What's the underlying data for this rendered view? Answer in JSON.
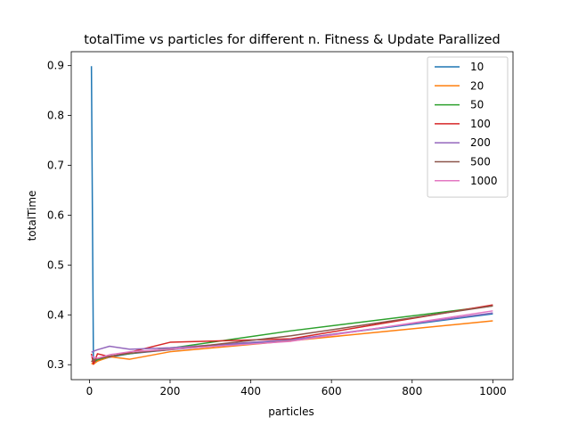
{
  "chart_data": {
    "type": "line",
    "title": "totalTime vs particles for different n. Fitness & Update Parallized",
    "xlabel": "particles",
    "ylabel": "totalTime",
    "xlim": [
      -45,
      1050
    ],
    "ylim": [
      0.27,
      0.928
    ],
    "xticks": [
      0,
      200,
      400,
      600,
      800,
      1000
    ],
    "yticks": [
      0.3,
      0.4,
      0.5,
      0.6,
      0.7,
      0.8,
      0.9
    ],
    "xtick_labels": [
      "0",
      "200",
      "400",
      "600",
      "800",
      "1000"
    ],
    "ytick_labels": [
      "0.3",
      "0.4",
      "0.5",
      "0.6",
      "0.7",
      "0.8",
      "0.9"
    ],
    "grid": false,
    "legend": "top-right",
    "series": [
      {
        "name": "10",
        "color": "#1f77b4",
        "x": [
          5,
          10,
          20,
          50,
          100,
          200,
          500,
          1000
        ],
        "y": [
          0.899,
          0.305,
          0.308,
          0.315,
          0.322,
          0.33,
          0.35,
          0.402
        ]
      },
      {
        "name": "20",
        "color": "#ff7f0e",
        "x": [
          5,
          10,
          20,
          50,
          100,
          200,
          500,
          1000
        ],
        "y": [
          0.303,
          0.301,
          0.307,
          0.316,
          0.311,
          0.326,
          0.348,
          0.388
        ]
      },
      {
        "name": "50",
        "color": "#2ca02c",
        "x": [
          5,
          10,
          20,
          50,
          100,
          200,
          500,
          1000
        ],
        "y": [
          0.307,
          0.306,
          0.31,
          0.317,
          0.322,
          0.333,
          0.368,
          0.418
        ]
      },
      {
        "name": "100",
        "color": "#d62728",
        "x": [
          5,
          10,
          20,
          50,
          100,
          200,
          500,
          1000
        ],
        "y": [
          0.322,
          0.301,
          0.322,
          0.316,
          0.325,
          0.345,
          0.352,
          0.42
        ]
      },
      {
        "name": "200",
        "color": "#9467bd",
        "x": [
          5,
          10,
          20,
          50,
          100,
          200,
          500,
          1000
        ],
        "y": [
          0.325,
          0.327,
          0.33,
          0.337,
          0.331,
          0.334,
          0.35,
          0.404
        ]
      },
      {
        "name": "500",
        "color": "#8c564b",
        "x": [
          5,
          10,
          20,
          50,
          100,
          200,
          500,
          1000
        ],
        "y": [
          0.306,
          0.31,
          0.312,
          0.317,
          0.323,
          0.33,
          0.358,
          0.418
        ]
      },
      {
        "name": "1000",
        "color": "#e377c2",
        "x": [
          5,
          10,
          20,
          50,
          100,
          200,
          500,
          1000
        ],
        "y": [
          0.318,
          0.315,
          0.313,
          0.32,
          0.326,
          0.331,
          0.347,
          0.408
        ]
      }
    ]
  }
}
